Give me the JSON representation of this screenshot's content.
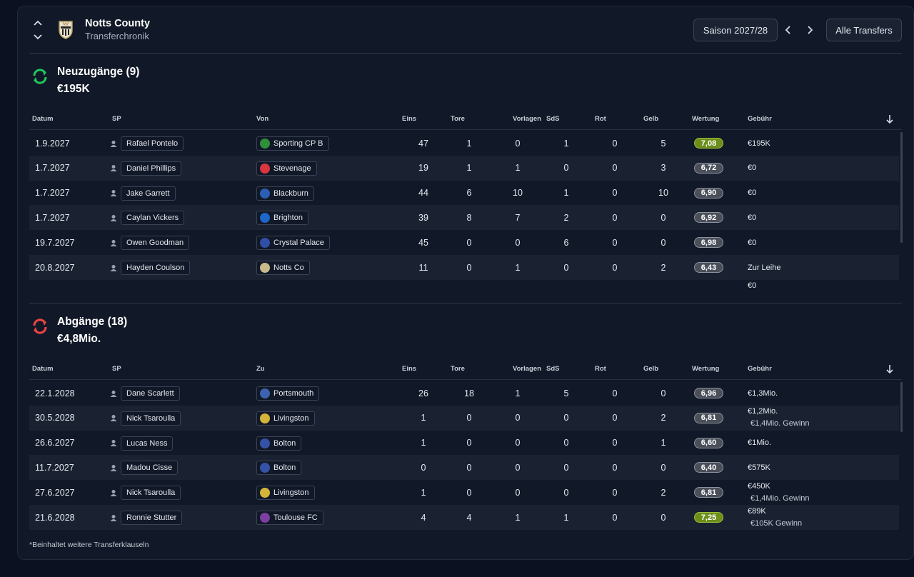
{
  "header": {
    "club_name": "Notts County",
    "subtitle": "Transferchronik",
    "season": "Saison 2027/28",
    "all_transfers": "Alle Transfers"
  },
  "incoming": {
    "title": "Neuzugänge (9)",
    "total": "€195K",
    "columns": [
      "Datum",
      "SP",
      "Von",
      "Eins",
      "Tore",
      "Vorlagen",
      "SdS",
      "Rot",
      "Gelb",
      "Wertung",
      "Gebühr"
    ],
    "rows": [
      {
        "date": "1.9.2027",
        "player": "Rafael Pontelo",
        "club": "Sporting CP B",
        "apps": "47",
        "goals": "1",
        "assists": "0",
        "pom": "1",
        "red": "0",
        "yellow": "5",
        "rating": "7,08",
        "fee": "€195K",
        "fee_note": ""
      },
      {
        "date": "1.7.2027",
        "player": "Daniel Phillips",
        "club": "Stevenage",
        "apps": "19",
        "goals": "1",
        "assists": "1",
        "pom": "0",
        "red": "0",
        "yellow": "3",
        "rating": "6,72",
        "fee": "€0",
        "fee_note": ""
      },
      {
        "date": "1.7.2027",
        "player": "Jake Garrett",
        "club": "Blackburn",
        "apps": "44",
        "goals": "6",
        "assists": "10",
        "pom": "1",
        "red": "0",
        "yellow": "10",
        "rating": "6,90",
        "fee": "€0",
        "fee_note": ""
      },
      {
        "date": "1.7.2027",
        "player": "Caylan Vickers",
        "club": "Brighton",
        "apps": "39",
        "goals": "8",
        "assists": "7",
        "pom": "2",
        "red": "0",
        "yellow": "0",
        "rating": "6,92",
        "fee": "€0",
        "fee_note": ""
      },
      {
        "date": "19.7.2027",
        "player": "Owen Goodman",
        "club": "Crystal Palace",
        "apps": "45",
        "goals": "0",
        "assists": "0",
        "pom": "6",
        "red": "0",
        "yellow": "0",
        "rating": "6,98",
        "fee": "€0",
        "fee_note": ""
      },
      {
        "date": "20.8.2027",
        "player": "Hayden Coulson",
        "club": "Notts Co",
        "apps": "11",
        "goals": "0",
        "assists": "1",
        "pom": "0",
        "red": "0",
        "yellow": "2",
        "rating": "6,43",
        "fee": "Zur Leihe",
        "fee_note": ""
      },
      {
        "date": "",
        "player": "",
        "club": "",
        "apps": "",
        "goals": "",
        "assists": "",
        "pom": "",
        "red": "",
        "yellow": "",
        "rating": "",
        "fee": "€0",
        "fee_note": ""
      }
    ]
  },
  "outgoing": {
    "title": "Abgänge (18)",
    "total": "€4,8Mio.",
    "columns": [
      "Datum",
      "SP",
      "Zu",
      "Eins",
      "Tore",
      "Vorlagen",
      "SdS",
      "Rot",
      "Gelb",
      "Wertung",
      "Gebühr"
    ],
    "rows": [
      {
        "date": "22.1.2028",
        "player": "Dane Scarlett",
        "club": "Portsmouth",
        "apps": "26",
        "goals": "18",
        "assists": "1",
        "pom": "5",
        "red": "0",
        "yellow": "0",
        "rating": "6,96",
        "fee": "€1,3Mio.",
        "fee_note": ""
      },
      {
        "date": "30.5.2028",
        "player": "Nick Tsaroulla",
        "club": "Livingston",
        "apps": "1",
        "goals": "0",
        "assists": "0",
        "pom": "0",
        "red": "0",
        "yellow": "2",
        "rating": "6,81",
        "fee": "€1,2Mio.",
        "fee_note": "€1,4Mio. Gewinn"
      },
      {
        "date": "26.6.2027",
        "player": "Lucas Ness",
        "club": "Bolton",
        "apps": "1",
        "goals": "0",
        "assists": "0",
        "pom": "0",
        "red": "0",
        "yellow": "1",
        "rating": "6,60",
        "fee": "€1Mio.",
        "fee_note": ""
      },
      {
        "date": "11.7.2027",
        "player": "Madou Cisse",
        "club": "Bolton",
        "apps": "0",
        "goals": "0",
        "assists": "0",
        "pom": "0",
        "red": "0",
        "yellow": "0",
        "rating": "6,40",
        "fee": "€575K",
        "fee_note": ""
      },
      {
        "date": "27.6.2027",
        "player": "Nick Tsaroulla",
        "club": "Livingston",
        "apps": "1",
        "goals": "0",
        "assists": "0",
        "pom": "0",
        "red": "0",
        "yellow": "2",
        "rating": "6,81",
        "fee": "€450K",
        "fee_note": "€1,4Mio. Gewinn"
      },
      {
        "date": "21.6.2028",
        "player": "Ronnie Stutter",
        "club": "Toulouse FC",
        "apps": "4",
        "goals": "4",
        "assists": "1",
        "pom": "1",
        "red": "0",
        "yellow": "0",
        "rating": "7,25",
        "fee": "€89K",
        "fee_note": "€105K Gewinn"
      }
    ]
  },
  "footnote": "*Beinhaltet weitere Transferklauseln",
  "colors": {
    "background": "#111827",
    "alt_row": "#1a2232",
    "good_rating": "#6c8e1a",
    "in_icon": "#22c55e",
    "out_icon": "#ef4444"
  }
}
